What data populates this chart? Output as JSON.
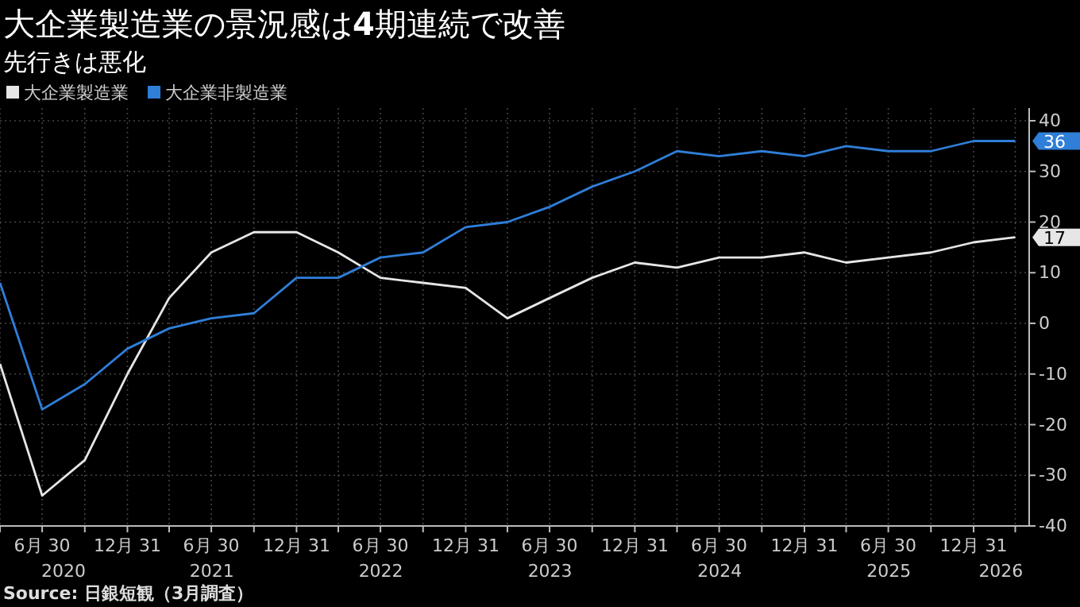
{
  "chart_data": {
    "type": "line",
    "title": "大企業製造業の景況感は**4**期連続で改善",
    "subtitle": "先行きは悪化",
    "x": [
      "2020-03-31",
      "2020-06-30",
      "2020-09-30",
      "2020-12-31",
      "2021-03-31",
      "2021-06-30",
      "2021-09-30",
      "2021-12-31",
      "2022-03-31",
      "2022-06-30",
      "2022-09-30",
      "2022-12-31",
      "2023-03-31",
      "2023-06-30",
      "2023-09-30",
      "2023-12-31",
      "2024-03-31",
      "2024-06-30",
      "2024-09-30",
      "2024-12-31",
      "2025-03-31",
      "2025-06-30",
      "2025-09-30",
      "2025-12-31",
      "2026-03-31"
    ],
    "series": [
      {
        "name": "大企業製造業",
        "color": "#e6e6e6",
        "values": [
          -8,
          -34,
          -27,
          -10,
          5,
          14,
          18,
          18,
          14,
          9,
          8,
          7,
          1,
          5,
          9,
          12,
          11,
          13,
          13,
          14,
          12,
          13,
          14,
          16,
          17
        ],
        "value_labels": [
          null,
          null,
          null,
          null,
          null,
          null,
          null,
          null,
          null,
          null,
          null,
          null,
          null,
          null,
          null,
          null,
          null,
          null,
          null,
          null,
          null,
          null,
          null,
          null,
          "17"
        ]
      },
      {
        "name": "大企業非製造業",
        "color": "#2f7ed8",
        "values": [
          8,
          -17,
          -12,
          -5,
          -1,
          1,
          2,
          9,
          9,
          13,
          14,
          19,
          20,
          23,
          27,
          30,
          34,
          33,
          34,
          33,
          35,
          34,
          34,
          36,
          36
        ],
        "value_labels": [
          null,
          null,
          null,
          null,
          null,
          null,
          null,
          null,
          null,
          null,
          null,
          null,
          null,
          null,
          null,
          null,
          null,
          null,
          null,
          null,
          null,
          null,
          null,
          null,
          "36"
        ]
      }
    ],
    "xlim": [
      "2020-03-31",
      "2026-04-30"
    ],
    "xticks": [
      {
        "value": "2020-06-30",
        "label": "6月 30"
      },
      {
        "value": "2020-12-31",
        "label": "12月 31"
      },
      {
        "value": "2021-06-30",
        "label": "6月 30"
      },
      {
        "value": "2021-12-31",
        "label": "12月 31"
      },
      {
        "value": "2022-06-30",
        "label": "6月 30"
      },
      {
        "value": "2022-12-31",
        "label": "12月 31"
      },
      {
        "value": "2023-06-30",
        "label": "6月 30"
      },
      {
        "value": "2023-12-31",
        "label": "12月 31"
      },
      {
        "value": "2024-06-30",
        "label": "6月 30"
      },
      {
        "value": "2024-12-31",
        "label": "12月 31"
      },
      {
        "value": "2025-06-30",
        "label": "6月 30"
      },
      {
        "value": "2025-12-31",
        "label": "12月 31"
      }
    ],
    "x2lim": [
      "2020-03-31",
      "2026-04-30"
    ],
    "x2ticks": [
      {
        "value": "2020-08-15",
        "label": "2020"
      },
      {
        "value": "2021-07-01",
        "label": "2021"
      },
      {
        "value": "2022-07-01",
        "label": "2022"
      },
      {
        "value": "2023-07-01",
        "label": "2023"
      },
      {
        "value": "2024-07-01",
        "label": "2024"
      },
      {
        "value": "2025-07-01",
        "label": "2025"
      },
      {
        "value": "2026-02-28",
        "label": "2026"
      }
    ],
    "ylim": [
      -40,
      40
    ],
    "yticks": [
      -40,
      -30,
      -20,
      -10,
      0,
      10,
      20,
      30,
      40
    ],
    "grid": true,
    "legend": "top left",
    "annotations": [
      "Source: 日銀短観（3月調査）"
    ]
  }
}
